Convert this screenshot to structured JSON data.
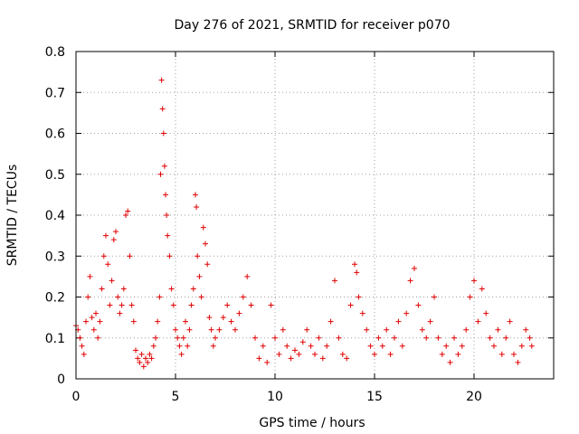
{
  "chart_data": {
    "type": "scatter",
    "title": "Day 276 of 2021, SRMTID for receiver p070",
    "xlabel": "GPS time / hours",
    "ylabel": "SRMTID / TECUs",
    "xlim": [
      0,
      24
    ],
    "ylim": [
      0,
      0.8
    ],
    "xticks": [
      0,
      5,
      10,
      15,
      20
    ],
    "yticks": [
      0,
      0.1,
      0.2,
      0.3,
      0.4,
      0.5,
      0.6,
      0.7,
      0.8
    ],
    "grid": true,
    "marker": "plus",
    "color": "#e00000",
    "series": [
      {
        "name": "SRMTID",
        "points": [
          [
            0.0,
            0.13
          ],
          [
            0.1,
            0.12
          ],
          [
            0.2,
            0.1
          ],
          [
            0.3,
            0.08
          ],
          [
            0.4,
            0.06
          ],
          [
            0.5,
            0.14
          ],
          [
            0.6,
            0.2
          ],
          [
            0.7,
            0.25
          ],
          [
            0.8,
            0.15
          ],
          [
            0.9,
            0.12
          ],
          [
            1.0,
            0.16
          ],
          [
            1.1,
            0.1
          ],
          [
            1.2,
            0.14
          ],
          [
            1.3,
            0.22
          ],
          [
            1.4,
            0.3
          ],
          [
            1.5,
            0.35
          ],
          [
            1.6,
            0.28
          ],
          [
            1.7,
            0.18
          ],
          [
            1.8,
            0.24
          ],
          [
            1.9,
            0.34
          ],
          [
            2.0,
            0.36
          ],
          [
            2.1,
            0.2
          ],
          [
            2.2,
            0.16
          ],
          [
            2.3,
            0.18
          ],
          [
            2.4,
            0.22
          ],
          [
            2.5,
            0.4
          ],
          [
            2.6,
            0.41
          ],
          [
            2.7,
            0.3
          ],
          [
            2.8,
            0.18
          ],
          [
            2.9,
            0.14
          ],
          [
            3.0,
            0.07
          ],
          [
            3.1,
            0.05
          ],
          [
            3.2,
            0.04
          ],
          [
            3.3,
            0.06
          ],
          [
            3.4,
            0.03
          ],
          [
            3.5,
            0.05
          ],
          [
            3.6,
            0.04
          ],
          [
            3.7,
            0.06
          ],
          [
            3.8,
            0.05
          ],
          [
            3.9,
            0.08
          ],
          [
            4.0,
            0.1
          ],
          [
            4.1,
            0.14
          ],
          [
            4.2,
            0.2
          ],
          [
            4.25,
            0.5
          ],
          [
            4.3,
            0.73
          ],
          [
            4.35,
            0.66
          ],
          [
            4.4,
            0.6
          ],
          [
            4.45,
            0.52
          ],
          [
            4.5,
            0.45
          ],
          [
            4.55,
            0.4
          ],
          [
            4.6,
            0.35
          ],
          [
            4.7,
            0.3
          ],
          [
            4.8,
            0.22
          ],
          [
            4.9,
            0.18
          ],
          [
            5.0,
            0.12
          ],
          [
            5.1,
            0.1
          ],
          [
            5.2,
            0.08
          ],
          [
            5.3,
            0.06
          ],
          [
            5.4,
            0.1
          ],
          [
            5.5,
            0.14
          ],
          [
            5.6,
            0.08
          ],
          [
            5.7,
            0.12
          ],
          [
            5.8,
            0.18
          ],
          [
            5.9,
            0.22
          ],
          [
            6.0,
            0.45
          ],
          [
            6.05,
            0.42
          ],
          [
            6.1,
            0.3
          ],
          [
            6.2,
            0.25
          ],
          [
            6.3,
            0.2
          ],
          [
            6.4,
            0.37
          ],
          [
            6.5,
            0.33
          ],
          [
            6.6,
            0.28
          ],
          [
            6.7,
            0.15
          ],
          [
            6.8,
            0.12
          ],
          [
            6.9,
            0.08
          ],
          [
            7.0,
            0.1
          ],
          [
            7.2,
            0.12
          ],
          [
            7.4,
            0.15
          ],
          [
            7.6,
            0.18
          ],
          [
            7.8,
            0.14
          ],
          [
            8.0,
            0.12
          ],
          [
            8.2,
            0.16
          ],
          [
            8.4,
            0.2
          ],
          [
            8.6,
            0.25
          ],
          [
            8.8,
            0.18
          ],
          [
            9.0,
            0.1
          ],
          [
            9.2,
            0.05
          ],
          [
            9.4,
            0.08
          ],
          [
            9.6,
            0.04
          ],
          [
            9.8,
            0.18
          ],
          [
            10.0,
            0.1
          ],
          [
            10.2,
            0.06
          ],
          [
            10.4,
            0.12
          ],
          [
            10.6,
            0.08
          ],
          [
            10.8,
            0.05
          ],
          [
            11.0,
            0.07
          ],
          [
            11.2,
            0.06
          ],
          [
            11.4,
            0.09
          ],
          [
            11.6,
            0.12
          ],
          [
            11.8,
            0.08
          ],
          [
            12.0,
            0.06
          ],
          [
            12.2,
            0.1
          ],
          [
            12.4,
            0.05
          ],
          [
            12.6,
            0.08
          ],
          [
            12.8,
            0.14
          ],
          [
            13.0,
            0.24
          ],
          [
            13.2,
            0.1
          ],
          [
            13.4,
            0.06
          ],
          [
            13.6,
            0.05
          ],
          [
            13.8,
            0.18
          ],
          [
            14.0,
            0.28
          ],
          [
            14.1,
            0.26
          ],
          [
            14.2,
            0.2
          ],
          [
            14.4,
            0.16
          ],
          [
            14.6,
            0.12
          ],
          [
            14.8,
            0.08
          ],
          [
            15.0,
            0.06
          ],
          [
            15.2,
            0.1
          ],
          [
            15.4,
            0.08
          ],
          [
            15.6,
            0.12
          ],
          [
            15.8,
            0.06
          ],
          [
            16.0,
            0.1
          ],
          [
            16.2,
            0.14
          ],
          [
            16.4,
            0.08
          ],
          [
            16.6,
            0.16
          ],
          [
            16.8,
            0.24
          ],
          [
            17.0,
            0.27
          ],
          [
            17.2,
            0.18
          ],
          [
            17.4,
            0.12
          ],
          [
            17.6,
            0.1
          ],
          [
            17.8,
            0.14
          ],
          [
            18.0,
            0.2
          ],
          [
            18.2,
            0.1
          ],
          [
            18.4,
            0.06
          ],
          [
            18.6,
            0.08
          ],
          [
            18.8,
            0.04
          ],
          [
            19.0,
            0.1
          ],
          [
            19.2,
            0.06
          ],
          [
            19.4,
            0.08
          ],
          [
            19.6,
            0.12
          ],
          [
            19.8,
            0.2
          ],
          [
            20.0,
            0.24
          ],
          [
            20.2,
            0.14
          ],
          [
            20.4,
            0.22
          ],
          [
            20.6,
            0.16
          ],
          [
            20.8,
            0.1
          ],
          [
            21.0,
            0.08
          ],
          [
            21.2,
            0.12
          ],
          [
            21.4,
            0.06
          ],
          [
            21.6,
            0.1
          ],
          [
            21.8,
            0.14
          ],
          [
            22.0,
            0.06
          ],
          [
            22.2,
            0.04
          ],
          [
            22.4,
            0.08
          ],
          [
            22.6,
            0.12
          ],
          [
            22.8,
            0.1
          ],
          [
            22.9,
            0.08
          ]
        ]
      }
    ]
  }
}
